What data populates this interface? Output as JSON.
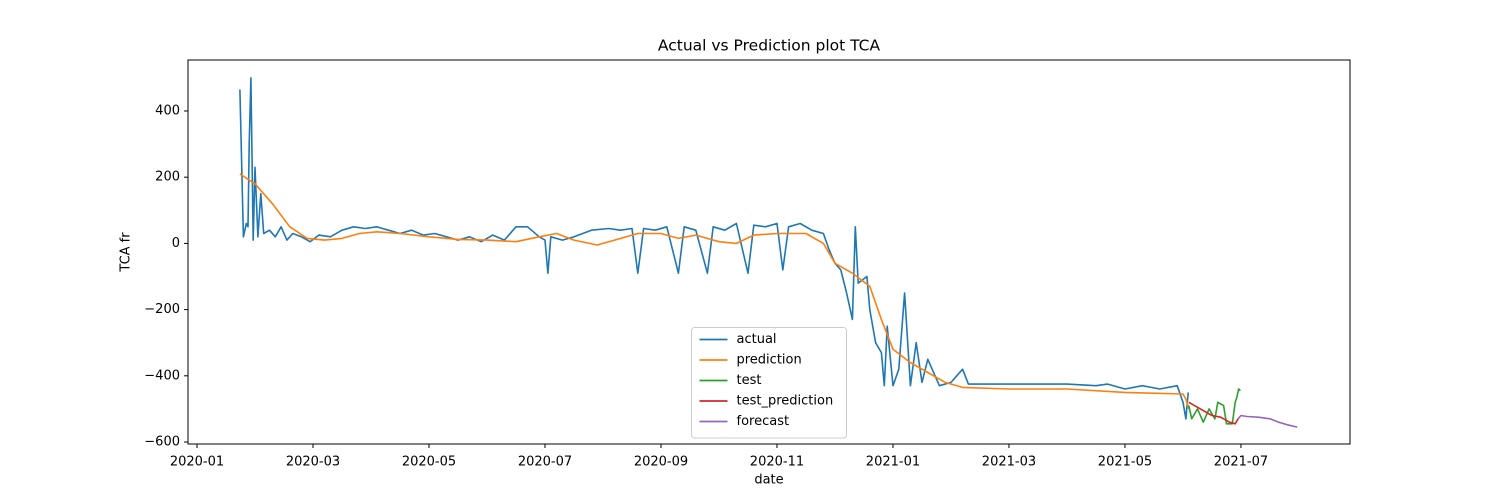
{
  "chart_data": {
    "type": "line",
    "title": "Actual vs Prediction plot TCA",
    "xlabel": "date",
    "ylabel": "TCA fr",
    "xlim": [
      -0.155,
      19.88
    ],
    "ylim": [
      -606,
      554
    ],
    "xticks": [
      {
        "value": 0,
        "label": "2020-01"
      },
      {
        "value": 2,
        "label": "2020-03"
      },
      {
        "value": 4,
        "label": "2020-05"
      },
      {
        "value": 6,
        "label": "2020-07"
      },
      {
        "value": 8,
        "label": "2020-09"
      },
      {
        "value": 10,
        "label": "2020-11"
      },
      {
        "value": 12,
        "label": "2021-01"
      },
      {
        "value": 14,
        "label": "2021-03"
      },
      {
        "value": 16,
        "label": "2021-05"
      },
      {
        "value": 18,
        "label": "2021-07"
      }
    ],
    "yticks": [
      {
        "value": -600,
        "label": "−600"
      },
      {
        "value": -400,
        "label": "−400"
      },
      {
        "value": -200,
        "label": "−200"
      },
      0,
      200,
      400
    ],
    "legend": "lower center",
    "series": [
      {
        "name": "actual",
        "color": "#1f77b4",
        "x": [
          0.74,
          0.8,
          0.85,
          0.88,
          0.9,
          0.93,
          0.97,
          1.0,
          1.05,
          1.1,
          1.15,
          1.25,
          1.35,
          1.45,
          1.55,
          1.65,
          1.8,
          1.95,
          2.1,
          2.3,
          2.5,
          2.7,
          2.9,
          3.1,
          3.3,
          3.5,
          3.7,
          3.9,
          4.1,
          4.3,
          4.5,
          4.7,
          4.9,
          5.1,
          5.3,
          5.5,
          5.7,
          5.9,
          6.0,
          6.05,
          6.1,
          6.3,
          6.5,
          6.8,
          7.1,
          7.3,
          7.5,
          7.6,
          7.7,
          7.9,
          8.1,
          8.3,
          8.4,
          8.6,
          8.8,
          8.9,
          9.1,
          9.3,
          9.5,
          9.6,
          9.8,
          10.0,
          10.1,
          10.2,
          10.4,
          10.6,
          10.8,
          10.9,
          11.0,
          11.1,
          11.2,
          11.3,
          11.35,
          11.4,
          11.55,
          11.6,
          11.7,
          11.8,
          11.85,
          11.9,
          12.0,
          12.1,
          12.2,
          12.3,
          12.4,
          12.5,
          12.6,
          12.8,
          13.0,
          13.2,
          13.3,
          14,
          15,
          15.5,
          15.7,
          16.0,
          16.3,
          16.6,
          16.9,
          17.0,
          17.05,
          17.09
        ],
        "values": [
          465,
          20,
          60,
          50,
          300,
          500,
          10,
          230,
          20,
          150,
          30,
          40,
          20,
          50,
          10,
          30,
          20,
          5,
          25,
          20,
          40,
          50,
          45,
          50,
          40,
          30,
          40,
          25,
          30,
          20,
          10,
          20,
          5,
          25,
          10,
          50,
          50,
          20,
          10,
          -90,
          20,
          10,
          20,
          40,
          45,
          40,
          45,
          -90,
          45,
          40,
          50,
          -90,
          50,
          40,
          -90,
          50,
          40,
          60,
          -90,
          55,
          50,
          60,
          -80,
          50,
          60,
          40,
          30,
          -20,
          -60,
          -80,
          -150,
          -230,
          50,
          -120,
          -100,
          -200,
          -300,
          -330,
          -430,
          -250,
          -430,
          -380,
          -150,
          -430,
          -300,
          -420,
          -350,
          -430,
          -420,
          -380,
          -425,
          -425,
          -425,
          -430,
          -425,
          -440,
          -430,
          -440,
          -430,
          -480,
          -530,
          -450
        ]
      },
      {
        "name": "prediction",
        "color": "#ff7f0e",
        "x": [
          0.74,
          1.0,
          1.3,
          1.6,
          1.9,
          2.2,
          2.5,
          2.8,
          3.1,
          3.5,
          4,
          4.5,
          5,
          5.5,
          5.9,
          6.2,
          6.5,
          6.9,
          7.2,
          7.6,
          8,
          8.3,
          8.6,
          9.0,
          9.3,
          9.6,
          10,
          10.5,
          10.8,
          11.0,
          11.3,
          11.6,
          11.8,
          12.0,
          12.3,
          12.6,
          12.9,
          13.2,
          14,
          15,
          16,
          17,
          17.05,
          17.1
        ],
        "values": [
          210,
          180,
          120,
          50,
          15,
          10,
          15,
          30,
          35,
          30,
          20,
          12,
          10,
          5,
          20,
          30,
          10,
          -5,
          10,
          30,
          30,
          15,
          25,
          5,
          0,
          25,
          30,
          30,
          0,
          -60,
          -90,
          -130,
          -230,
          -320,
          -360,
          -390,
          -420,
          -435,
          -440,
          -440,
          -450,
          -455,
          -470,
          -500
        ]
      },
      {
        "name": "test",
        "color": "#2ca02c",
        "x": [
          17.1,
          17.15,
          17.25,
          17.35,
          17.45,
          17.55,
          17.6,
          17.7,
          17.75,
          17.85,
          17.9,
          17.93,
          17.96,
          17.99
        ],
        "values": [
          -490,
          -530,
          -500,
          -540,
          -500,
          -530,
          -480,
          -490,
          -545,
          -545,
          -480,
          -465,
          -440,
          -445
        ]
      },
      {
        "name": "test_prediction",
        "color": "#d62728",
        "x": [
          17.1,
          17.3,
          17.5,
          17.65,
          17.8,
          17.9,
          17.95
        ],
        "values": [
          -480,
          -500,
          -520,
          -525,
          -540,
          -545,
          -530
        ]
      },
      {
        "name": "forecast",
        "color": "#9467bd",
        "x": [
          17.95,
          18.0,
          18.1,
          18.3,
          18.5,
          18.65,
          18.8,
          18.97
        ],
        "values": [
          -530,
          -520,
          -523,
          -525,
          -530,
          -540,
          -548,
          -555
        ]
      }
    ]
  }
}
